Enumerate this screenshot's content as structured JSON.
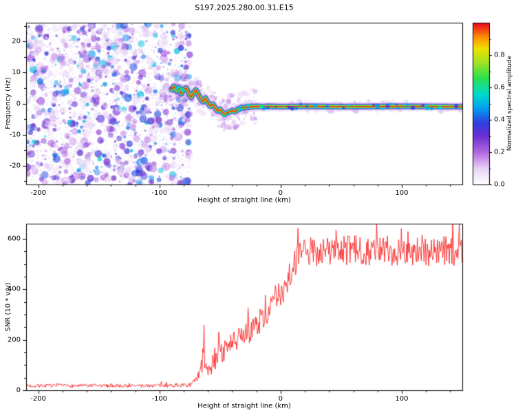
{
  "title": "S197.2025.280.00.31.E15",
  "chart_data": [
    {
      "type": "heatmap",
      "title": "S197.2025.280.00.31.E15",
      "xlabel": "Height of straight line (km)",
      "ylabel": "Frequency (Hz)",
      "xlim": [
        -210,
        150
      ],
      "ylim": [
        -26,
        26
      ],
      "xticks": [
        -200,
        -100,
        0,
        100
      ],
      "xtick_labels": [
        "-200",
        "-100",
        "0",
        "100"
      ],
      "xminor": [
        -180,
        -160,
        -140,
        -120,
        -80,
        -60,
        -40,
        -20,
        20,
        40,
        60,
        80,
        120,
        140
      ],
      "yticks": [
        -20,
        -10,
        0,
        10,
        20
      ],
      "ytick_labels": [
        "-20",
        "-10",
        "0",
        "10",
        "20"
      ],
      "yminor": [
        -25,
        -15,
        -5,
        5,
        15,
        25
      ],
      "colorbar": {
        "label": "Normalized spectral amplitude",
        "range": [
          0,
          1
        ],
        "ticks": [
          0.0,
          0.2,
          0.4,
          0.6,
          0.8
        ],
        "tick_labels": [
          "0.0",
          "0.2",
          "0.4",
          "0.6",
          "0.8"
        ],
        "minor": [
          0.1,
          0.3,
          0.5,
          0.7,
          0.9
        ],
        "stops": [
          [
            0,
            "#ffffff"
          ],
          [
            0.1,
            "#e8d0f6"
          ],
          [
            0.2,
            "#b066e0"
          ],
          [
            0.3,
            "#6a2fd0"
          ],
          [
            0.38,
            "#2e3fe0"
          ],
          [
            0.48,
            "#00a8f0"
          ],
          [
            0.56,
            "#00dcc8"
          ],
          [
            0.66,
            "#2ee04e"
          ],
          [
            0.76,
            "#a8e420"
          ],
          [
            0.84,
            "#f0e000"
          ],
          [
            0.91,
            "#ff9000"
          ],
          [
            1,
            "#e80022"
          ]
        ]
      },
      "noise": {
        "seed": 42,
        "x_end": -75,
        "blob_count": 1500,
        "grain_count": 2500
      },
      "fuzz_count": 260,
      "trace": [
        [
          -90,
          4.5
        ],
        [
          -88,
          5.5
        ],
        [
          -86,
          4
        ],
        [
          -84,
          5.2
        ],
        [
          -82,
          3.2
        ],
        [
          -80,
          4.6
        ],
        [
          -78,
          5
        ],
        [
          -76,
          3.6
        ],
        [
          -74,
          2
        ],
        [
          -72,
          3.4
        ],
        [
          -70,
          4.4
        ],
        [
          -68,
          3
        ],
        [
          -66,
          1.6
        ],
        [
          -64,
          0.6
        ],
        [
          -62,
          1.8
        ],
        [
          -60,
          0.2
        ],
        [
          -58,
          -0.8
        ],
        [
          -56,
          -0.2
        ],
        [
          -54,
          -1.4
        ],
        [
          -52,
          -2.4
        ],
        [
          -50,
          -1.8
        ],
        [
          -48,
          -2.8
        ],
        [
          -46,
          -3.4
        ],
        [
          -44,
          -3
        ],
        [
          -42,
          -2.6
        ],
        [
          -40,
          -2.2
        ],
        [
          -38,
          -2.6
        ],
        [
          -36,
          -2
        ],
        [
          -34,
          -1.6
        ],
        [
          -32,
          -1.2
        ],
        [
          -30,
          -1.4
        ],
        [
          -28,
          -1
        ],
        [
          -26,
          -1.2
        ],
        [
          -24,
          -0.9
        ],
        [
          -22,
          -1
        ],
        [
          -20,
          -0.9
        ],
        [
          -15,
          -1
        ],
        [
          -10,
          -0.9
        ],
        [
          0,
          -1
        ],
        [
          20,
          -0.9
        ],
        [
          50,
          -1
        ],
        [
          100,
          -0.9
        ],
        [
          150,
          -1
        ]
      ],
      "trace_layers": [
        {
          "v": 0.12,
          "w": 13,
          "a": 0.45
        },
        {
          "v": 0.3,
          "w": 8.5,
          "a": 0.8
        },
        {
          "v": 0.5,
          "w": 6,
          "a": 0.9
        },
        {
          "v": 0.65,
          "w": 4.4,
          "a": 1
        },
        {
          "v": 0.82,
          "w": 2.9,
          "a": 1
        },
        {
          "v": 0.98,
          "w": 1.6,
          "a": 1
        }
      ],
      "trace_blob_count": 60
    },
    {
      "type": "line",
      "title": "",
      "xlabel": "Height of straight line (km)",
      "ylabel": "SNR (10 * v/v)",
      "xlim": [
        -210,
        150
      ],
      "ylim": [
        0,
        660
      ],
      "xticks": [
        -200,
        -100,
        0,
        100
      ],
      "xtick_labels": [
        "-200",
        "-100",
        "0",
        "100"
      ],
      "xminor": [
        -180,
        -160,
        -140,
        -120,
        -80,
        -60,
        -40,
        -20,
        20,
        40,
        60,
        80,
        120,
        140
      ],
      "yticks": [
        0,
        200,
        400,
        600
      ],
      "ytick_labels": [
        "0",
        "200",
        "400",
        "600"
      ],
      "yminor": [
        50,
        100,
        150,
        250,
        300,
        350,
        450,
        500,
        550
      ],
      "series_name": "SNR",
      "series_color": "#fa2020",
      "seed": 7,
      "envelope": [
        [
          -210,
          18,
          14
        ],
        [
          -120,
          18,
          14
        ],
        [
          -76,
          20,
          16
        ],
        [
          -70,
          35,
          30
        ],
        [
          -66,
          70,
          60
        ],
        [
          -63,
          170,
          220
        ],
        [
          -61,
          90,
          60
        ],
        [
          -58,
          70,
          50
        ],
        [
          -55,
          120,
          90
        ],
        [
          -52,
          150,
          120
        ],
        [
          -50,
          190,
          160
        ],
        [
          -48,
          150,
          90
        ],
        [
          -45,
          160,
          90
        ],
        [
          -40,
          185,
          90
        ],
        [
          -35,
          200,
          90
        ],
        [
          -30,
          215,
          90
        ],
        [
          -25,
          235,
          90
        ],
        [
          -20,
          260,
          95
        ],
        [
          -15,
          285,
          95
        ],
        [
          -10,
          315,
          100
        ],
        [
          -5,
          345,
          105
        ],
        [
          0,
          385,
          115
        ],
        [
          5,
          440,
          150
        ],
        [
          10,
          490,
          140
        ],
        [
          15,
          525,
          110
        ],
        [
          20,
          545,
          120
        ],
        [
          30,
          552,
          120
        ],
        [
          60,
          555,
          120
        ],
        [
          100,
          552,
          120
        ],
        [
          150,
          550,
          120
        ]
      ]
    }
  ]
}
